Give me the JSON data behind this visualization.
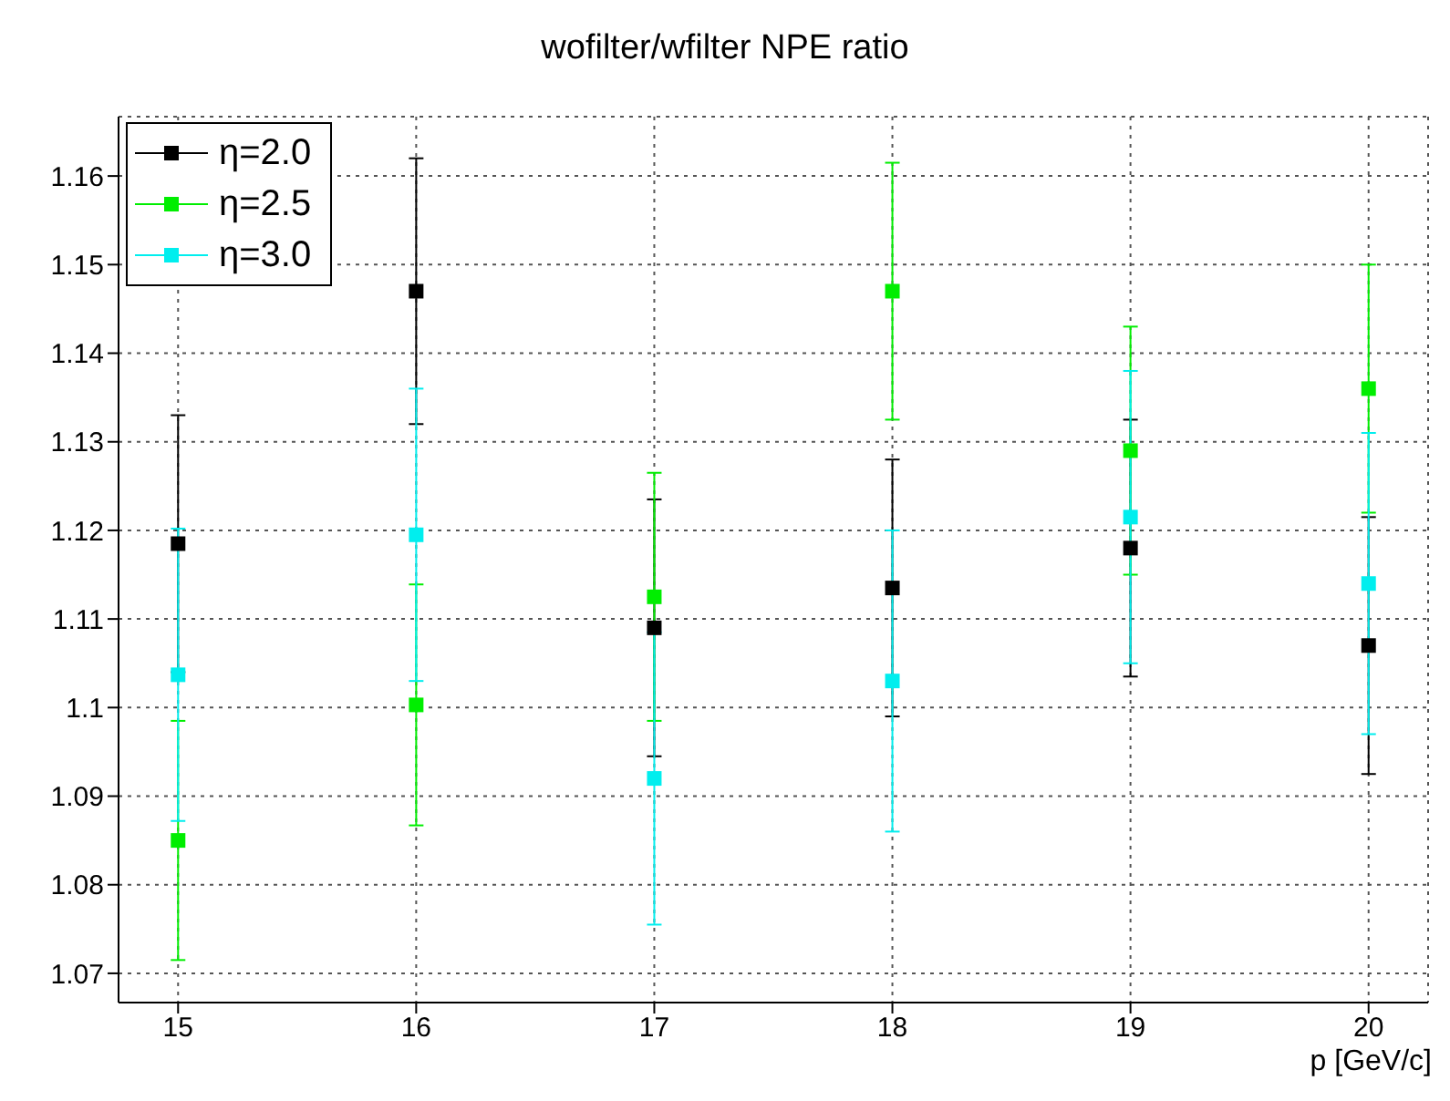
{
  "chart_data": {
    "type": "scatter",
    "title": "wofilter/wfilter NPE ratio",
    "xlabel": "p [GeV/c]",
    "x": [
      15,
      16,
      17,
      18,
      19,
      20
    ],
    "series": [
      {
        "name": "η=2.0",
        "color": "#000000",
        "values": [
          1.1185,
          1.147,
          1.109,
          1.1135,
          1.118,
          1.107
        ],
        "errors": [
          0.0145,
          0.015,
          0.0145,
          0.0145,
          0.0145,
          0.0145
        ]
      },
      {
        "name": "η=2.5",
        "color": "#00ee00",
        "values": [
          1.085,
          1.1003,
          1.1125,
          1.147,
          1.129,
          1.136
        ],
        "errors": [
          0.0135,
          0.0136,
          0.014,
          0.0145,
          0.014,
          0.014
        ]
      },
      {
        "name": "η=3.0",
        "color": "#00eeee",
        "values": [
          1.1037,
          1.1195,
          1.092,
          1.103,
          1.1215,
          1.114
        ],
        "errors": [
          0.0165,
          0.0165,
          0.0165,
          0.017,
          0.0165,
          0.017
        ]
      }
    ],
    "xlim": [
      14.75,
      20.25
    ],
    "xticks": [
      15,
      16,
      17,
      18,
      19,
      20
    ],
    "ylim": [
      1.0667,
      1.1667
    ],
    "yticks": [
      1.07,
      1.08,
      1.09,
      1.1,
      1.11,
      1.12,
      1.13,
      1.14,
      1.15,
      1.16
    ],
    "grid": true,
    "legend": "top left",
    "marker": "square"
  }
}
